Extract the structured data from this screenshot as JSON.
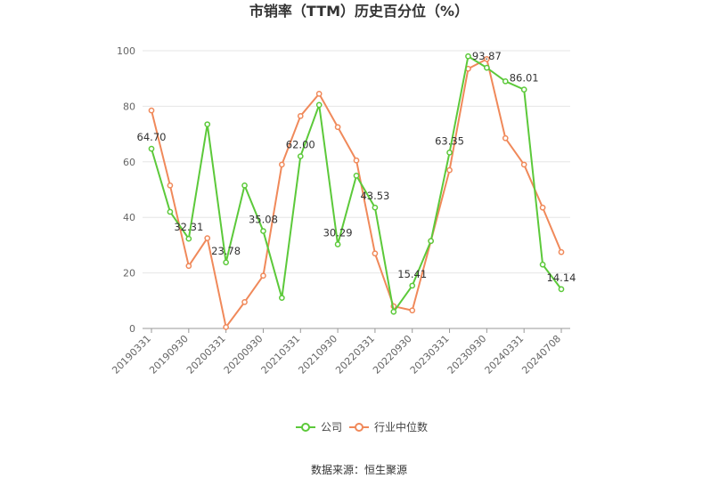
{
  "chart_data": {
    "type": "line",
    "title": "市销率（TTM）历史百分位（%）",
    "xlabel": "",
    "ylabel": "",
    "ylim": [
      0,
      100
    ],
    "yticks": [
      0,
      20,
      40,
      60,
      80,
      100
    ],
    "x": [
      "20190331",
      "20190630",
      "20190930",
      "20191231",
      "20200331",
      "20200630",
      "20200930",
      "20201231",
      "20210331",
      "20210630",
      "20210930",
      "20211231",
      "20220331",
      "20220630",
      "20220930",
      "20221231",
      "20230331",
      "20230630",
      "20230930",
      "20231231",
      "20240331",
      "20240630",
      "20240708"
    ],
    "xticks": [
      "20190331",
      "20190930",
      "20200331",
      "20200930",
      "20210331",
      "20210930",
      "20220331",
      "20220930",
      "20230331",
      "20230930",
      "20240331",
      "20240708"
    ],
    "grid": true,
    "legend_position": "bottom",
    "series": [
      {
        "name": "公司",
        "color": "#5cc93a",
        "values": [
          64.7,
          42,
          32.31,
          73.5,
          23.78,
          51.5,
          35.08,
          11,
          62.0,
          80.5,
          30.29,
          55,
          43.53,
          6,
          15.41,
          31.5,
          63.35,
          98,
          93.87,
          89,
          86.01,
          23,
          14.14
        ],
        "labels": [
          "64.70",
          null,
          "32.31",
          null,
          "23.78",
          null,
          "35.08",
          null,
          "62.00",
          null,
          "30.29",
          null,
          "43.53",
          null,
          "15.41",
          null,
          "63.35",
          null,
          "93.87",
          null,
          "86.01",
          null,
          "14.14"
        ]
      },
      {
        "name": "行业中位数",
        "color": "#f0895a",
        "values": [
          78.5,
          51.5,
          22.5,
          32.5,
          0.5,
          9.5,
          19,
          59,
          76.5,
          84.5,
          72.5,
          60.5,
          27,
          8,
          6.5,
          31.5,
          57,
          93.5,
          97,
          68.5,
          59,
          43.5,
          27.5
        ]
      }
    ]
  },
  "source_text": "数据来源：恒生聚源"
}
